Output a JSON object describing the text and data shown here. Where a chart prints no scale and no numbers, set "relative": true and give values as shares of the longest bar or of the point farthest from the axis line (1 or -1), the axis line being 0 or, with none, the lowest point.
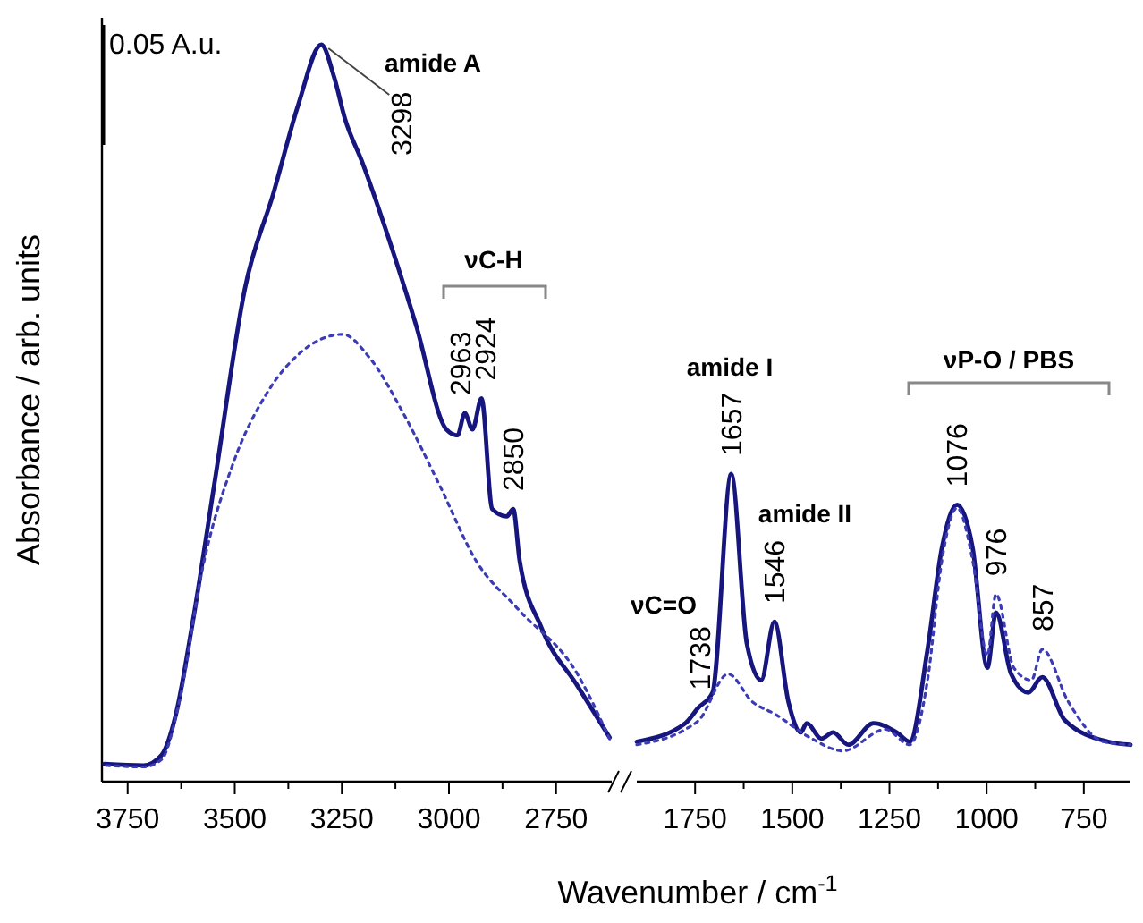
{
  "chart_data": [
    {
      "type": "line",
      "relative": true,
      "ylabel": "Absorbance / arb. units",
      "xlim": [
        3810,
        2620
      ],
      "xticks": [
        3750,
        {
          "value": 3625,
          "label": null
        },
        3500,
        {
          "value": 3375,
          "label": null
        },
        3250,
        {
          "value": 3125,
          "label": null
        },
        3000,
        {
          "value": 2875,
          "label": null
        },
        2750
      ],
      "series": [
        {
          "color": "#16167e",
          "line_style": "solid",
          "x": [
            3804,
            3713,
            3671,
            3638,
            3600,
            3546,
            3476,
            3409,
            3351,
            3298,
            3268,
            3243,
            3202,
            3131,
            3077,
            3006,
            2980,
            2963,
            2945,
            2924,
            2899,
            2865,
            2850,
            2835,
            2785,
            2700,
            2625
          ],
          "values": [
            0.024,
            0.022,
            0.036,
            0.09,
            0.21,
            0.41,
            0.67,
            0.8,
            0.92,
            1,
            0.956,
            0.9,
            0.84,
            0.72,
            0.62,
            0.478,
            0.47,
            0.5,
            0.478,
            0.52,
            0.37,
            0.36,
            0.37,
            0.3,
            0.21,
            0.13,
            0.06
          ]
        },
        {
          "color": "#3b3bb5",
          "line_style": "dotted",
          "x": [
            3800,
            3713,
            3671,
            3630,
            3575,
            3505,
            3422,
            3351,
            3248,
            3185,
            3102,
            3020,
            2937,
            2840,
            2700,
            2625
          ],
          "values": [
            0.022,
            0.02,
            0.03,
            0.107,
            0.29,
            0.43,
            0.53,
            0.58,
            0.607,
            0.575,
            0.495,
            0.4,
            0.3,
            0.235,
            0.146,
            0.058
          ]
        }
      ],
      "annotations": [
        "0.05 A.u.",
        "amide A",
        "νC-H",
        {
          "text": "3298",
          "x": 3298,
          "y": 1
        },
        {
          "text": "2963",
          "x": 2963,
          "y": 0.5
        },
        {
          "text": "2924",
          "x": 2924,
          "y": 0.52
        },
        {
          "text": "2850",
          "x": 2850,
          "y": 0.37
        }
      ]
    },
    {
      "type": "line",
      "relative": true,
      "xlabel": "Wavenumber / cm$^{-1}$",
      "xlim": [
        1900,
        630
      ],
      "xticks": [
        1750,
        {
          "value": 1625,
          "label": null
        },
        1500,
        {
          "value": 1375,
          "label": null
        },
        1250,
        {
          "value": 1125,
          "label": null
        },
        1000,
        {
          "value": 875,
          "label": null
        },
        750
      ],
      "series": [
        {
          "color": "#16167e",
          "line_style": "solid",
          "x": [
            1900,
            1775,
            1742,
            1705,
            1657,
            1617,
            1580,
            1546,
            1510,
            1478,
            1463,
            1425,
            1395,
            1356,
            1291,
            1231,
            1198,
            1152,
            1115,
            1076,
            1036,
            998,
            976,
            937,
            893,
            857,
            799,
            688,
            630
          ],
          "values": [
            0.13,
            0.19,
            0.24,
            0.29,
            1,
            0.45,
            0.33,
            0.52,
            0.26,
            0.16,
            0.19,
            0.14,
            0.16,
            0.12,
            0.19,
            0.16,
            0.13,
            0.43,
            0.76,
            0.9,
            0.76,
            0.37,
            0.55,
            0.35,
            0.29,
            0.34,
            0.2,
            0.13,
            0.12
          ]
        },
        {
          "color": "#3b3bb5",
          "line_style": "dotted",
          "x": [
            1900,
            1775,
            1740,
            1665,
            1603,
            1545,
            1450,
            1370,
            1260,
            1198,
            1152,
            1115,
            1076,
            1036,
            998,
            976,
            930,
            885,
            857,
            790,
            700,
            630
          ],
          "values": [
            0.12,
            0.17,
            0.2,
            0.35,
            0.26,
            0.22,
            0.14,
            0.1,
            0.17,
            0.12,
            0.33,
            0.72,
            0.89,
            0.72,
            0.41,
            0.61,
            0.37,
            0.33,
            0.43,
            0.26,
            0.13,
            0.12
          ]
        }
      ],
      "annotations": [
        "νC=O",
        "amide I",
        "amide II",
        "νP-O / PBS",
        {
          "text": "1738",
          "x": 1738,
          "y": 0.24
        },
        {
          "text": "1657",
          "x": 1657,
          "y": 1
        },
        {
          "text": "1546",
          "x": 1546,
          "y": 0.52
        },
        {
          "text": "1076",
          "x": 1076,
          "y": 0.9
        },
        {
          "text": "976",
          "x": 976,
          "y": 0.61
        },
        {
          "text": "857",
          "x": 857,
          "y": 0.43
        }
      ]
    }
  ]
}
